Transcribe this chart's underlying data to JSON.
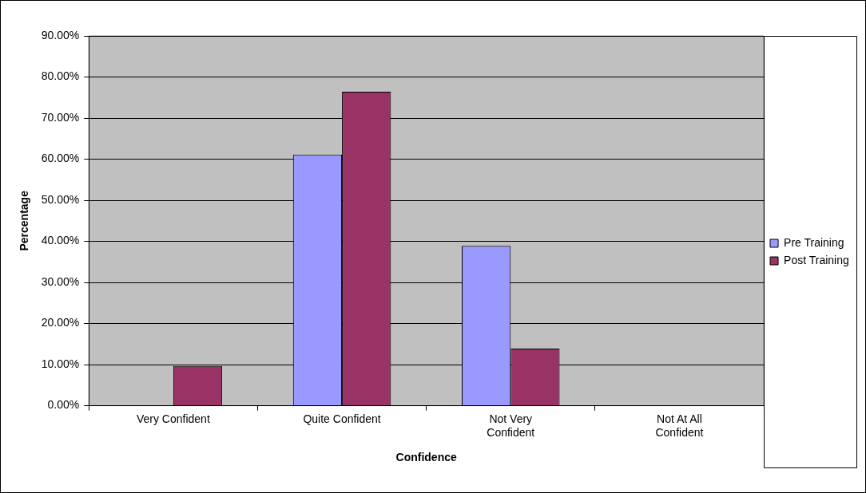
{
  "chart_data": {
    "type": "bar",
    "xlabel": "Confidence",
    "ylabel": "Percentage",
    "categories": [
      "Very Confident",
      "Quite Confident",
      "Not Very Confident",
      "Not At All Confident"
    ],
    "series": [
      {
        "name": "Pre Training",
        "color": "#9999ff",
        "values": [
          0,
          61.1,
          38.9,
          0
        ]
      },
      {
        "name": "Post Training",
        "color": "#993366",
        "values": [
          9.7,
          76.4,
          13.9,
          0
        ]
      }
    ],
    "ylim": [
      0,
      90
    ],
    "yticks": [
      {
        "value": 0,
        "label": "0.00%"
      },
      {
        "value": 10,
        "label": "10.00%"
      },
      {
        "value": 20,
        "label": "20.00%"
      },
      {
        "value": 30,
        "label": "30.00%"
      },
      {
        "value": 40,
        "label": "40.00%"
      },
      {
        "value": 50,
        "label": "50.00%"
      },
      {
        "value": 60,
        "label": "60.00%"
      },
      {
        "value": 70,
        "label": "70.00%"
      },
      {
        "value": 80,
        "label": "80.00%"
      },
      {
        "value": 90,
        "label": "90.00%"
      }
    ],
    "grid": "y",
    "legend": "right"
  }
}
